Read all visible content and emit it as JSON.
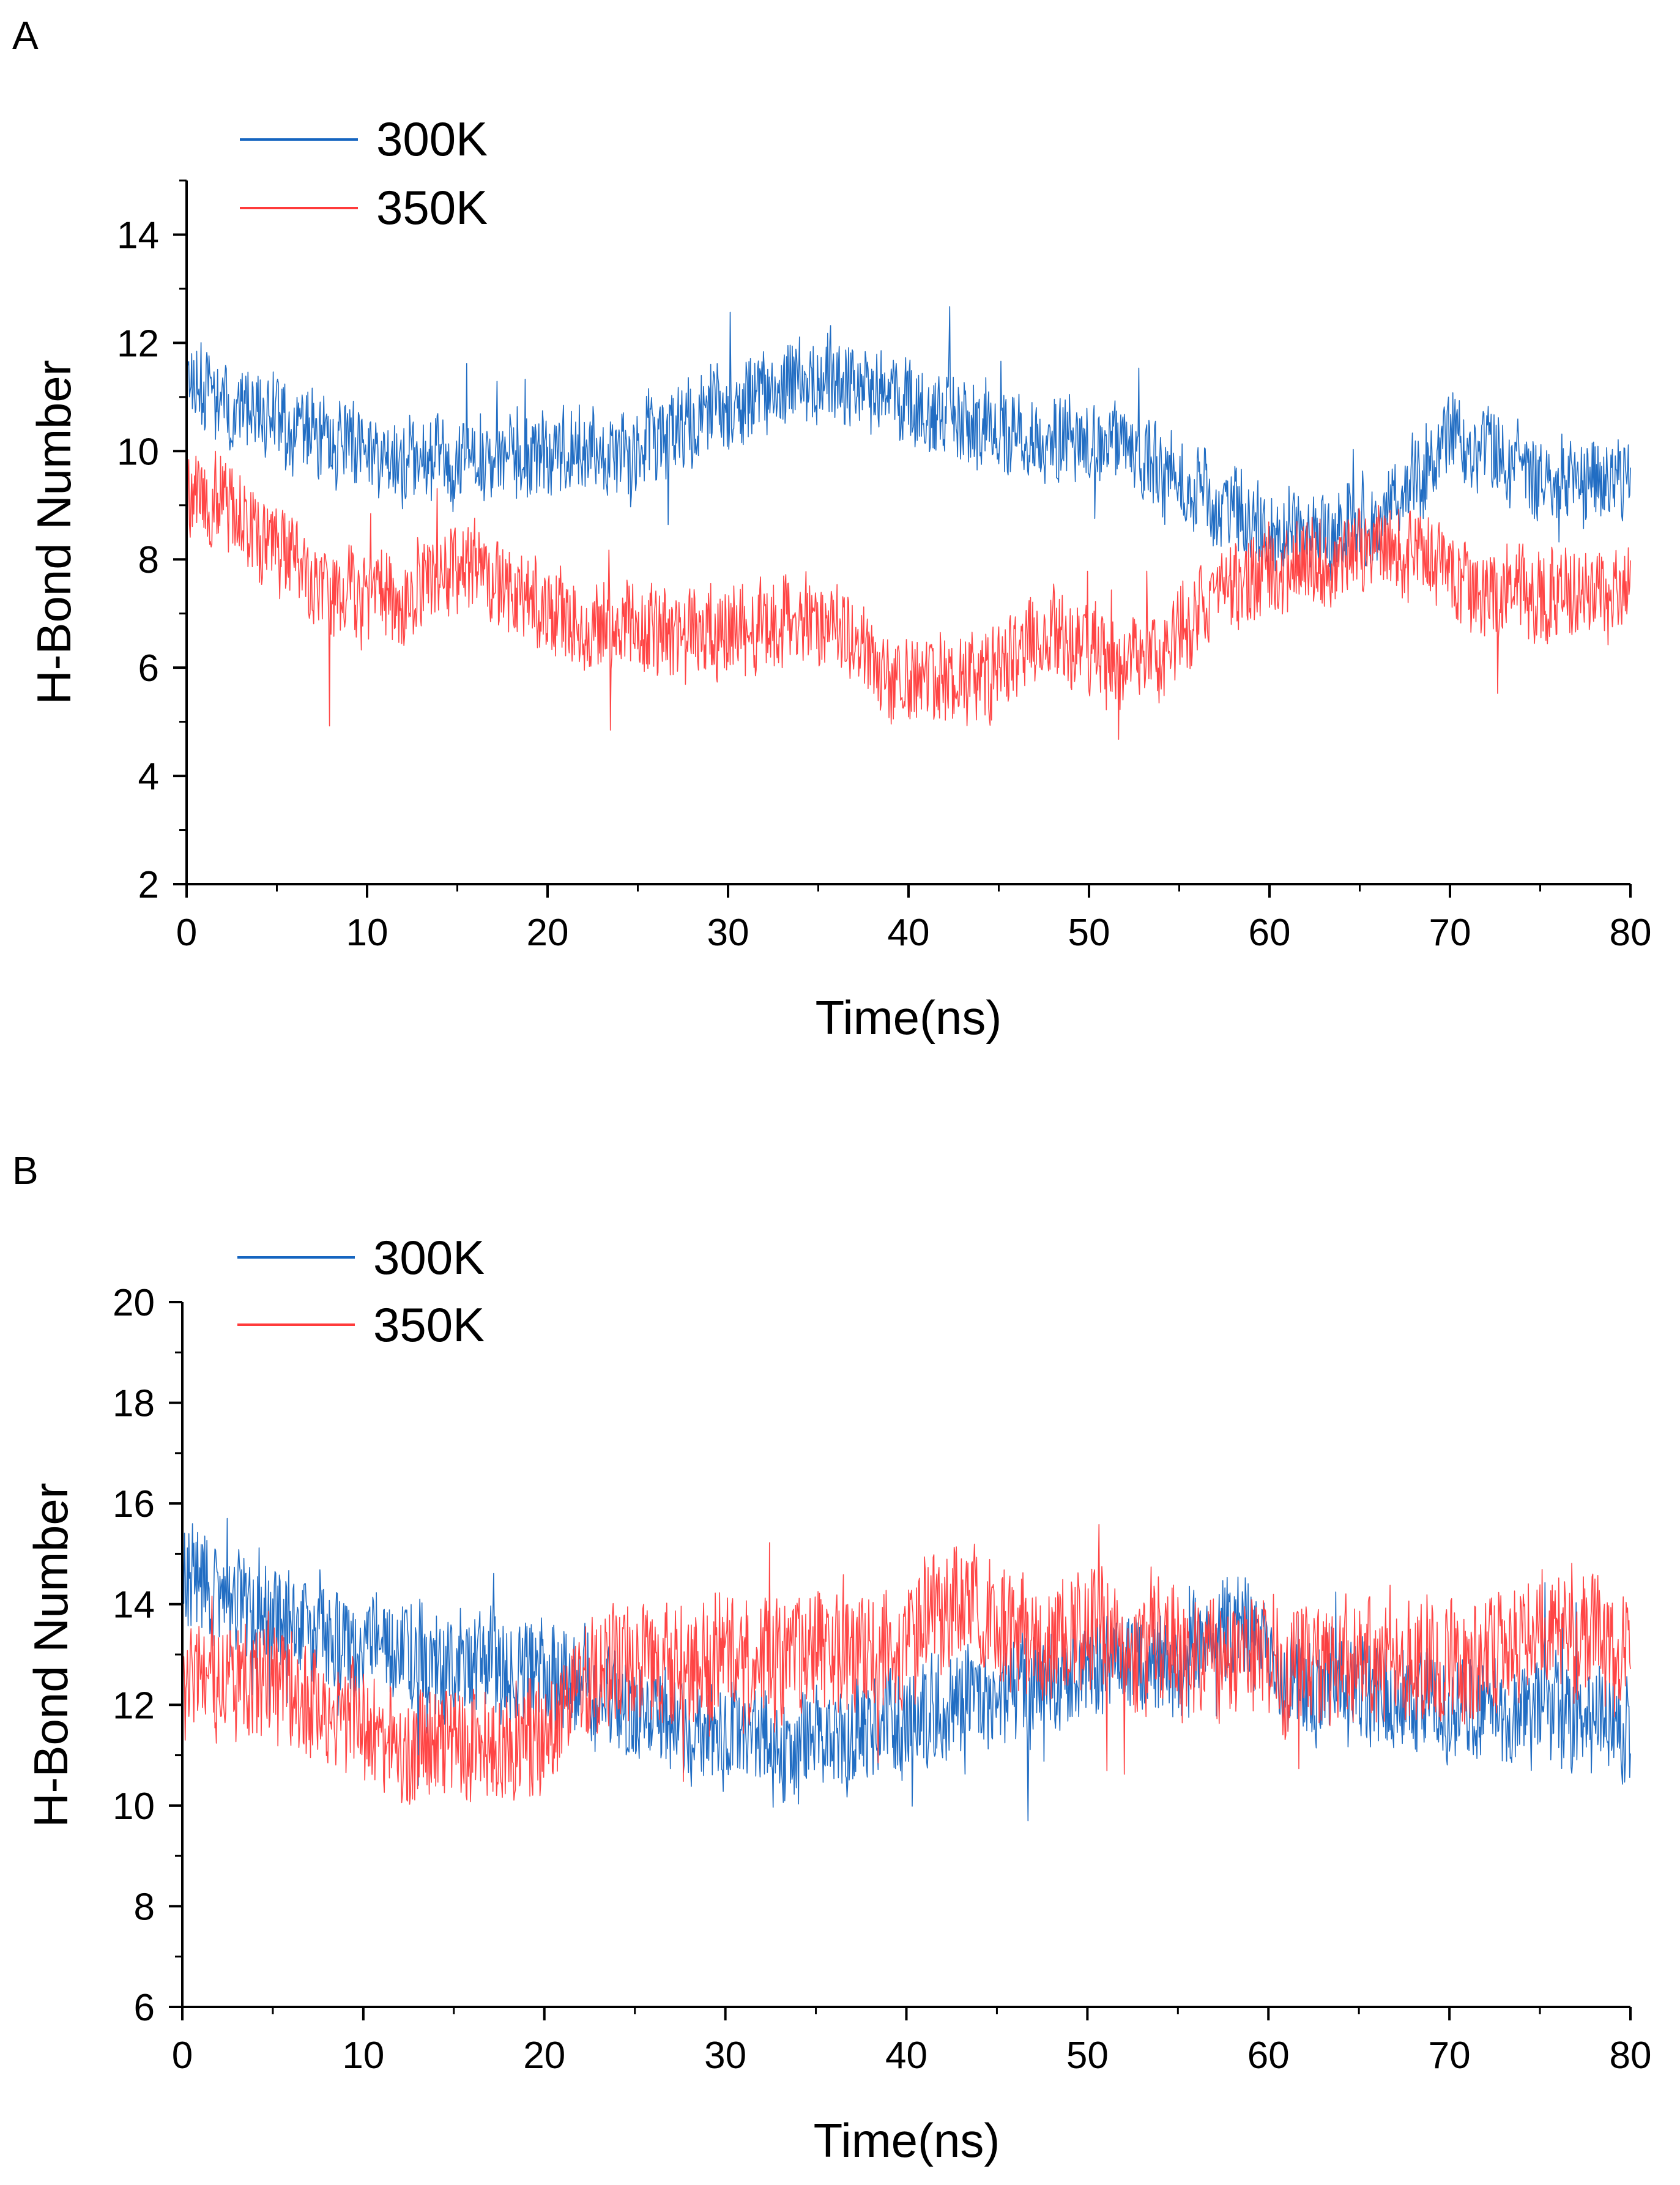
{
  "figure": {
    "panels": [
      "A",
      "B"
    ]
  },
  "chart_data": [
    {
      "panel_label": "A",
      "type": "line",
      "title": "",
      "xlabel": "Time(ns)",
      "ylabel": "H-Bond Number",
      "xlim": [
        0,
        80
      ],
      "ylim": [
        2,
        15
      ],
      "xticks": [
        0,
        10,
        20,
        30,
        40,
        50,
        60,
        70,
        80
      ],
      "yticks": [
        2,
        4,
        6,
        8,
        10,
        12,
        14
      ],
      "legend_position": "top-left",
      "grid": false,
      "sample_step_ns": 0.04,
      "noise_amplitude": [
        0.75,
        0.8
      ],
      "seed": 11,
      "series": [
        {
          "name": "300K",
          "color": "#1565c0",
          "trend": [
            [
              0,
              11.5
            ],
            [
              3,
              10.8
            ],
            [
              8,
              10.2
            ],
            [
              12,
              9.8
            ],
            [
              18,
              9.9
            ],
            [
              25,
              10.0
            ],
            [
              30,
              10.8
            ],
            [
              35,
              11.4
            ],
            [
              40,
              10.9
            ],
            [
              45,
              10.3
            ],
            [
              50,
              10.1
            ],
            [
              55,
              9.6
            ],
            [
              58,
              8.8
            ],
            [
              62,
              8.4
            ],
            [
              66,
              8.8
            ],
            [
              70,
              10.2
            ],
            [
              74,
              9.6
            ],
            [
              80,
              9.3
            ]
          ]
        },
        {
          "name": "350K",
          "color": "#ff3b3b",
          "trend": [
            [
              0,
              9.3
            ],
            [
              4,
              8.6
            ],
            [
              8,
              7.3
            ],
            [
              12,
              7.4
            ],
            [
              15,
              8.0
            ],
            [
              18,
              7.5
            ],
            [
              22,
              6.6
            ],
            [
              27,
              6.6
            ],
            [
              32,
              6.9
            ],
            [
              36,
              6.7
            ],
            [
              40,
              5.6
            ],
            [
              44,
              5.8
            ],
            [
              48,
              6.6
            ],
            [
              52,
              6.0
            ],
            [
              55,
              6.6
            ],
            [
              58,
              7.6
            ],
            [
              62,
              7.9
            ],
            [
              67,
              8.2
            ],
            [
              72,
              7.4
            ],
            [
              80,
              7.3
            ]
          ]
        }
      ]
    },
    {
      "panel_label": "B",
      "type": "line",
      "title": "",
      "xlabel": "Time(ns)",
      "ylabel": "H-Bond Number",
      "xlim": [
        0,
        80
      ],
      "ylim": [
        6,
        20
      ],
      "xticks": [
        0,
        10,
        20,
        30,
        40,
        50,
        60,
        70,
        80
      ],
      "yticks": [
        6,
        8,
        10,
        12,
        14,
        16,
        18,
        20
      ],
      "legend_position": "top-left",
      "grid": false,
      "sample_step_ns": 0.04,
      "noise_amplitude": [
        1.0,
        1.15
      ],
      "seed": 29,
      "series": [
        {
          "name": "300K",
          "color": "#1565c0",
          "trend": [
            [
              0,
              14.5
            ],
            [
              5,
              13.8
            ],
            [
              10,
              13.2
            ],
            [
              15,
              12.8
            ],
            [
              20,
              12.6
            ],
            [
              25,
              11.8
            ],
            [
              30,
              11.3
            ],
            [
              35,
              11.2
            ],
            [
              40,
              11.8
            ],
            [
              45,
              12.2
            ],
            [
              50,
              12.7
            ],
            [
              55,
              13.0
            ],
            [
              58,
              13.6
            ],
            [
              62,
              12.3
            ],
            [
              70,
              12.0
            ],
            [
              80,
              11.6
            ]
          ]
        },
        {
          "name": "350K",
          "color": "#ff3b3b",
          "trend": [
            [
              0,
              12.6
            ],
            [
              5,
              12.3
            ],
            [
              10,
              11.6
            ],
            [
              15,
              11.1
            ],
            [
              20,
              11.4
            ],
            [
              23,
              12.6
            ],
            [
              30,
              13.0
            ],
            [
              35,
              13.0
            ],
            [
              40,
              13.3
            ],
            [
              43,
              14.2
            ],
            [
              47,
              13.2
            ],
            [
              50,
              13.6
            ],
            [
              55,
              13.0
            ],
            [
              60,
              12.8
            ],
            [
              65,
              12.8
            ],
            [
              70,
              12.7
            ],
            [
              75,
              13.6
            ],
            [
              80,
              13.1
            ]
          ]
        }
      ]
    }
  ]
}
